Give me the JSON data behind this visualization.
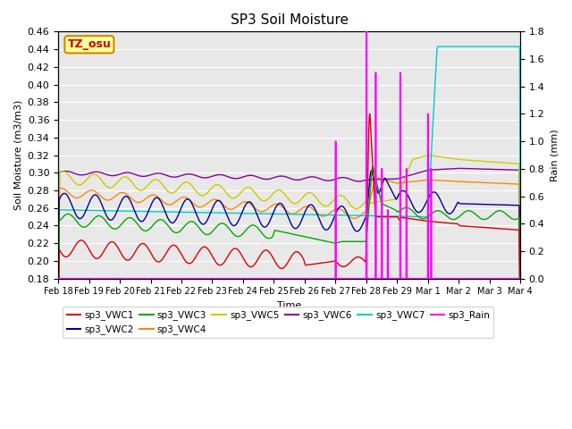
{
  "title": "SP3 Soil Moisture",
  "xlabel": "Time",
  "ylabel_left": "Soil Moisture (m3/m3)",
  "ylabel_right": "Rain (mm)",
  "annotation": "TZ_osu",
  "ylim_left": [
    0.18,
    0.46
  ],
  "ylim_right": [
    0.0,
    1.8
  ],
  "yticks_left": [
    0.18,
    0.2,
    0.22,
    0.24,
    0.26,
    0.28,
    0.3,
    0.32,
    0.34,
    0.36,
    0.38,
    0.4,
    0.42,
    0.44,
    0.46
  ],
  "yticks_right": [
    0.0,
    0.2,
    0.4,
    0.6,
    0.8,
    1.0,
    1.2,
    1.4,
    1.6,
    1.8
  ],
  "xtick_labels": [
    "Feb 18",
    "Feb 19",
    "Feb 20",
    "Feb 21",
    "Feb 22",
    "Feb 23",
    "Feb 24",
    "Feb 25",
    "Feb 26",
    "Feb 27",
    "Feb 28",
    "Feb 29",
    "Mar 1",
    "Mar 2",
    "Mar 3",
    "Mar 4"
  ],
  "colors": {
    "sp3_VWC1": "#dd0000",
    "sp3_VWC2": "#000099",
    "sp3_VWC3": "#00aa00",
    "sp3_VWC4": "#ff8800",
    "sp3_VWC5": "#cccc00",
    "sp3_VWC6": "#880099",
    "sp3_VWC7": "#00cccc",
    "sp3_Rain": "#ff00ff"
  },
  "legend_entries_row1": [
    {
      "label": "sp3_VWC1",
      "color": "#dd0000"
    },
    {
      "label": "sp3_VWC2",
      "color": "#000099"
    },
    {
      "label": "sp3_VWC3",
      "color": "#00aa00"
    },
    {
      "label": "sp3_VWC4",
      "color": "#ff8800"
    },
    {
      "label": "sp3_VWC5",
      "color": "#cccc00"
    },
    {
      "label": "sp3_VWC6",
      "color": "#880099"
    }
  ],
  "legend_entries_row2": [
    {
      "label": "sp3_VWC7",
      "color": "#00cccc"
    },
    {
      "label": "sp3_Rain",
      "color": "#ff00ff"
    }
  ],
  "background_color": "#e8e8e8",
  "grid_color": "#ffffff"
}
